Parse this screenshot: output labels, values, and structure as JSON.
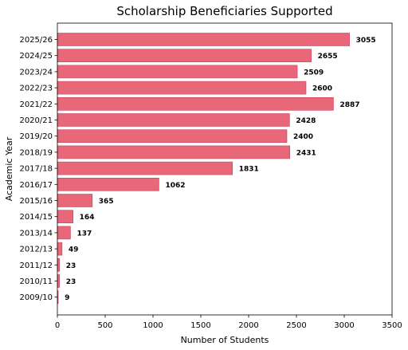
{
  "chart_data": {
    "type": "bar",
    "orientation": "horizontal",
    "title": "Scholarship Beneficiaries Supported",
    "xlabel": "Number of Students",
    "ylabel": "Academic Year",
    "categories": [
      "2025/26",
      "2024/25",
      "2023/24",
      "2022/23",
      "2021/22",
      "2020/21",
      "2019/20",
      "2018/19",
      "2017/18",
      "2016/17",
      "2015/16",
      "2014/15",
      "2013/14",
      "2012/13",
      "2011/12",
      "2010/11",
      "2009/10"
    ],
    "values": [
      3055,
      2655,
      2509,
      2600,
      2887,
      2428,
      2400,
      2431,
      1831,
      1062,
      365,
      164,
      137,
      49,
      23,
      23,
      9
    ],
    "xlim": [
      0,
      3500
    ],
    "xticks": [
      0,
      500,
      1000,
      1500,
      2000,
      2500,
      3000,
      3500
    ],
    "bar_color": "#e8687a",
    "grid": false,
    "legend": false
  }
}
